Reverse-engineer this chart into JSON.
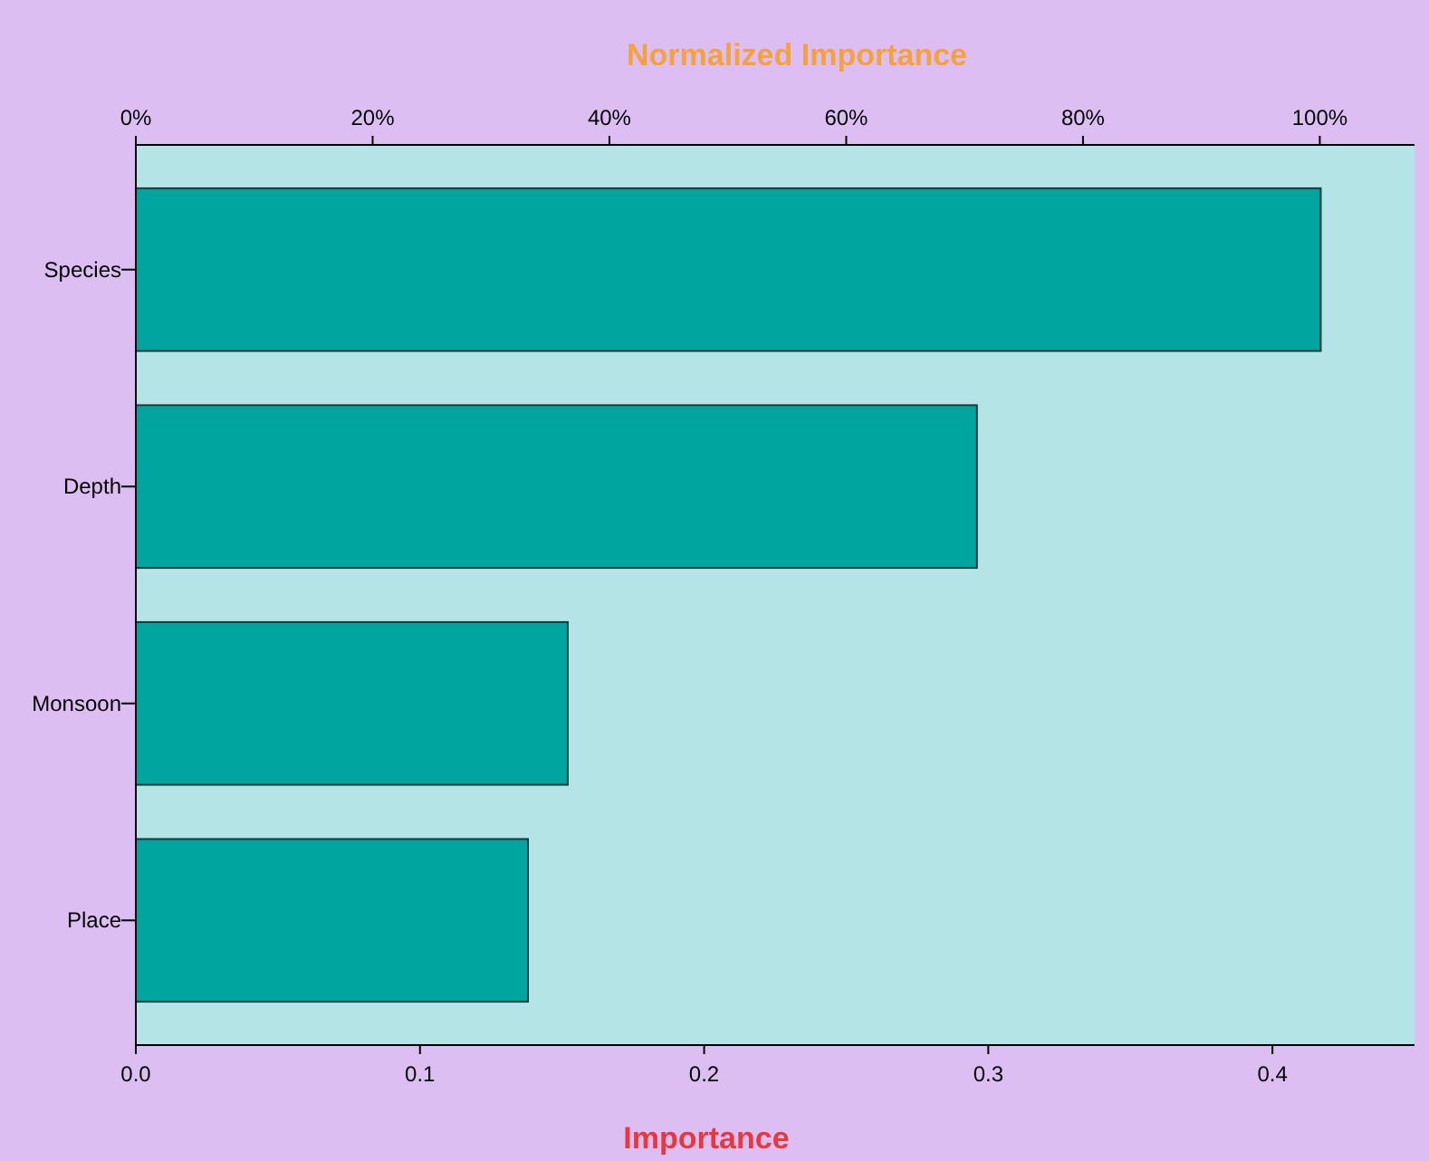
{
  "chart_data": {
    "type": "bar",
    "orientation": "horizontal",
    "categories": [
      "Species",
      "Depth",
      "Monsoon",
      "Place"
    ],
    "values": [
      0.417,
      0.296,
      0.152,
      0.138
    ],
    "color": "#00a5a0",
    "xlabel": "Importance",
    "x2label": "Normalized Importance",
    "xlim": [
      0,
      0.45
    ],
    "xticks": [
      {
        "value": 0,
        "label": "0.0"
      },
      {
        "value": 0.1,
        "label": "0.1"
      },
      {
        "value": 0.2,
        "label": "0.2"
      },
      {
        "value": 0.3,
        "label": "0.3"
      },
      {
        "value": 0.4,
        "label": "0.4"
      }
    ],
    "x2lim": [
      0,
      108
    ],
    "x2ticks": [
      {
        "value": 0,
        "label": "0%"
      },
      {
        "value": 20,
        "label": "20%"
      },
      {
        "value": 40,
        "label": "40%"
      },
      {
        "value": 60,
        "label": "60%"
      },
      {
        "value": 80,
        "label": "80%"
      },
      {
        "value": 100,
        "label": "100%"
      }
    ]
  }
}
